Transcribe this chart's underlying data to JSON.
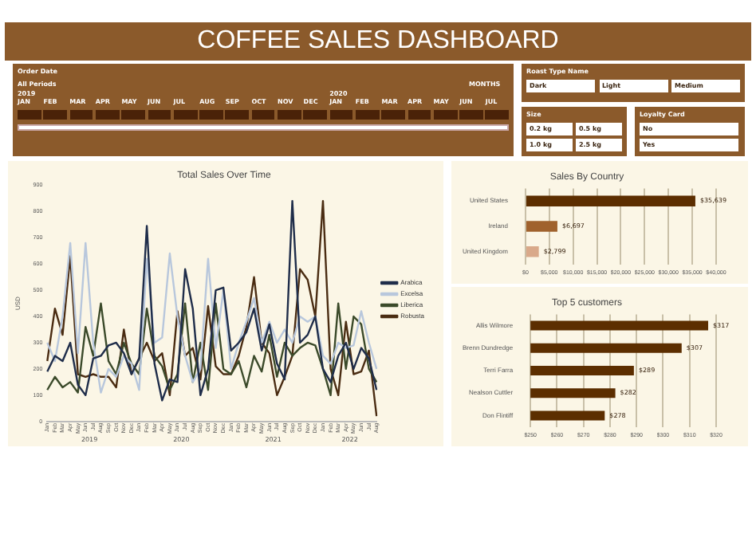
{
  "chart_data": [
    {
      "type": "other",
      "title": "COFFEE SALES DASHBOARD",
      "annotations": [
        "Order Date",
        "All Periods",
        "MONTHS",
        "2019",
        "JAN",
        "FEB",
        "MAR",
        "APR",
        "MAY",
        "JUN",
        "JUL",
        "AUG",
        "SEP",
        "OCT",
        "NOV",
        "DEC",
        "2020",
        "JAN",
        "FEB",
        "MAR",
        "APR",
        "MAY",
        "JUN",
        "JUL",
        "Roast Type Name",
        "Dark",
        "Light",
        "Medium",
        "Size",
        "0.2 kg",
        "0.5 kg",
        "1.0 kg",
        "2.5 kg",
        "Loyalty Card",
        "No",
        "Yes"
      ]
    },
    {
      "type": "line",
      "title": "Total Sales Over Time",
      "ylabel": "USD",
      "categories": [
        "Jan",
        "Feb",
        "Mar",
        "Apr",
        "May",
        "Jun",
        "Jul",
        "Aug",
        "Sep",
        "Oct",
        "Nov",
        "Dec",
        "Jan",
        "Feb",
        "Mar",
        "Apr",
        "May",
        "Jun",
        "Jul",
        "Aug",
        "Sep",
        "Oct",
        "Nov",
        "Dec",
        "Jan",
        "Feb",
        "Mar",
        "Apr",
        "May",
        "Jun",
        "Jul",
        "Aug",
        "Sep",
        "Oct",
        "Nov",
        "Dec",
        "Jan",
        "Feb",
        "Mar",
        "Apr",
        "May",
        "Jun",
        "Jul",
        "Aug"
      ],
      "annotations": [
        "2019",
        "2020",
        "2021",
        "2022"
      ],
      "ylim": [
        0,
        900
      ],
      "yticks": [
        0,
        100,
        200,
        300,
        400,
        500,
        600,
        700,
        800,
        900
      ],
      "grid": false,
      "legend": "right",
      "marker": "none",
      "series": [
        {
          "name": "Arabica",
          "color": "#1f2d4a",
          "values": [
            190,
            250,
            230,
            300,
            140,
            100,
            240,
            250,
            290,
            300,
            260,
            180,
            240,
            745,
            220,
            80,
            160,
            150,
            580,
            430,
            100,
            200,
            500,
            510,
            270,
            300,
            340,
            430,
            270,
            370,
            220,
            160,
            840,
            300,
            330,
            400,
            200,
            150,
            250,
            300,
            200,
            280,
            240,
            120
          ]
        },
        {
          "name": "Excelsa",
          "color": "#b8c7dc",
          "values": [
            300,
            230,
            400,
            680,
            260,
            680,
            300,
            110,
            200,
            170,
            250,
            220,
            120,
            620,
            300,
            320,
            640,
            400,
            250,
            150,
            200,
            620,
            280,
            500,
            200,
            300,
            380,
            470,
            300,
            380,
            300,
            350,
            300,
            400,
            380,
            400,
            250,
            220,
            300,
            280,
            290,
            420,
            300,
            200
          ]
        },
        {
          "name": "Liberica",
          "color": "#3b4a2a",
          "values": [
            120,
            170,
            130,
            150,
            110,
            360,
            250,
            450,
            230,
            180,
            300,
            220,
            180,
            430,
            250,
            210,
            120,
            180,
            450,
            150,
            300,
            120,
            450,
            200,
            180,
            230,
            130,
            250,
            190,
            330,
            170,
            300,
            250,
            280,
            300,
            290,
            200,
            100,
            450,
            200,
            400,
            370,
            200,
            150
          ]
        },
        {
          "name": "Robusta",
          "color": "#4a2c12",
          "values": [
            230,
            430,
            330,
            630,
            180,
            170,
            180,
            170,
            170,
            130,
            350,
            180,
            240,
            300,
            230,
            260,
            100,
            420,
            250,
            280,
            160,
            440,
            210,
            180,
            180,
            250,
            360,
            550,
            300,
            260,
            100,
            170,
            250,
            580,
            540,
            400,
            840,
            200,
            100,
            380,
            180,
            190,
            270,
            20
          ]
        }
      ]
    },
    {
      "type": "bar",
      "orientation": "horizontal",
      "title": "Sales By Country",
      "categories": [
        "United States",
        "Ireland",
        "United Kingdom"
      ],
      "values": [
        35639,
        6697,
        2799
      ],
      "value_labels": [
        "$35,639",
        "$6,697",
        "$2,799"
      ],
      "colors": [
        "#5c2e00",
        "#a0622d",
        "#d9a98a"
      ],
      "xlim": [
        0,
        40000
      ],
      "xticks": [
        {
          "value": 0,
          "label": "$0"
        },
        {
          "value": 5000,
          "label": "$5,000"
        },
        {
          "value": 10000,
          "label": "$10,000"
        },
        {
          "value": 15000,
          "label": "$15,000"
        },
        {
          "value": 20000,
          "label": "$20,000"
        },
        {
          "value": 25000,
          "label": "$25,000"
        },
        {
          "value": 30000,
          "label": "$30,000"
        },
        {
          "value": 35000,
          "label": "$35,000"
        },
        {
          "value": 40000,
          "label": "$40,000"
        }
      ],
      "grid": "x"
    },
    {
      "type": "bar",
      "orientation": "horizontal",
      "title": "Top 5 customers",
      "categories": [
        "Allis Wilmore",
        "Brenn Dundredge",
        "Terri Farra",
        "Nealson Cuttler",
        "Don Flintiff"
      ],
      "values": [
        317,
        307,
        289,
        282,
        278
      ],
      "value_labels": [
        "$317",
        "$307",
        "$289",
        "$282",
        "$278"
      ],
      "color": "#5c2e00",
      "xlim": [
        250,
        320
      ],
      "xticks": [
        {
          "value": 250,
          "label": "$250"
        },
        {
          "value": 260,
          "label": "$260"
        },
        {
          "value": 270,
          "label": "$270"
        },
        {
          "value": 280,
          "label": "$280"
        },
        {
          "value": 290,
          "label": "$290"
        },
        {
          "value": 300,
          "label": "$300"
        },
        {
          "value": 310,
          "label": "$310"
        },
        {
          "value": 320,
          "label": "$320"
        }
      ],
      "grid": "x"
    }
  ]
}
